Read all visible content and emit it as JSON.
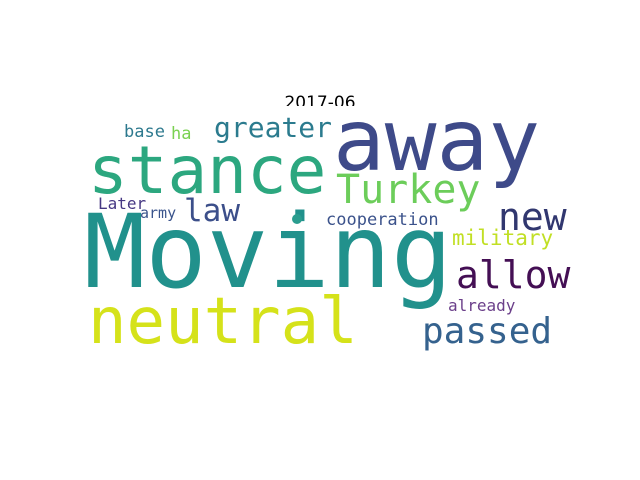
{
  "figure": {
    "title": "2017-06"
  },
  "wordcloud": {
    "words": [
      {
        "key": "moving",
        "text": "Moving",
        "color": "#21918c"
      },
      {
        "key": "away",
        "text": "away",
        "color": "#3e4a89"
      },
      {
        "key": "stance",
        "text": "stance",
        "color": "#2ca77f"
      },
      {
        "key": "neutral",
        "text": "neutral",
        "color": "#d5e21a"
      },
      {
        "key": "turkey",
        "text": "Turkey",
        "color": "#6ccd5a"
      },
      {
        "key": "allow",
        "text": "allow",
        "color": "#440f54"
      },
      {
        "key": "new",
        "text": "new",
        "color": "#31376f"
      },
      {
        "key": "passed",
        "text": "passed",
        "color": "#35628e"
      },
      {
        "key": "law",
        "text": "law",
        "color": "#3c4f8a"
      },
      {
        "key": "greater",
        "text": "greater",
        "color": "#2b7b8e"
      },
      {
        "key": "military",
        "text": "military",
        "color": "#c1df24"
      },
      {
        "key": "base",
        "text": "base",
        "color": "#2d798e"
      },
      {
        "key": "ha",
        "text": "ha",
        "color": "#7ad151"
      },
      {
        "key": "later",
        "text": "Later",
        "color": "#463883"
      },
      {
        "key": "army",
        "text": "army",
        "color": "#3a548c"
      },
      {
        "key": "cooperation",
        "text": "cooperation",
        "color": "#3b528b"
      },
      {
        "key": "already",
        "text": "already",
        "color": "#6b3f8a"
      }
    ]
  }
}
